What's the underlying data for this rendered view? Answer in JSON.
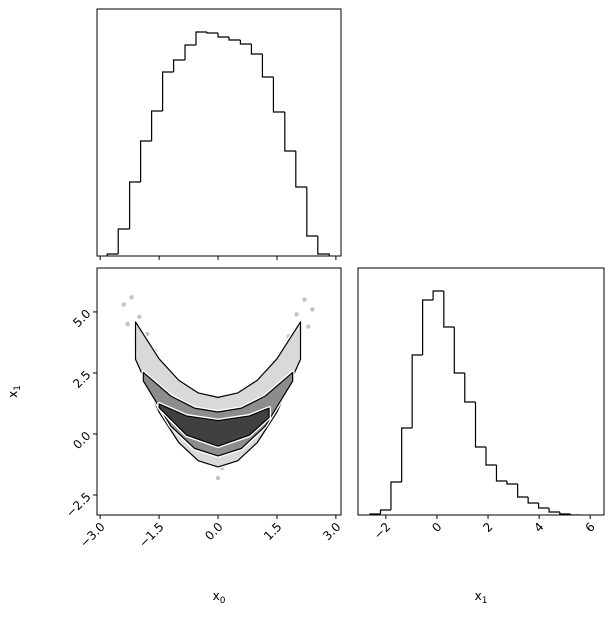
{
  "chart_data": [
    {
      "type": "histogram",
      "bins": [
        -2.82,
        -2.54,
        -2.25,
        -1.97,
        -1.69,
        -1.41,
        -1.13,
        -0.84,
        -0.56,
        -0.28,
        0.0,
        0.28,
        0.57,
        0.85,
        1.13,
        1.41,
        1.7,
        1.98,
        2.26,
        2.54,
        2.83
      ],
      "counts": [
        2,
        27,
        74,
        115,
        145,
        184,
        196,
        211,
        224,
        223,
        219,
        216,
        212,
        202,
        179,
        144,
        105,
        69,
        20,
        2
      ],
      "color": "#000000",
      "xlim": [
        -3.08,
        3.13
      ],
      "ylim": [
        0,
        247
      ],
      "xticks": [
        {
          "value": -3,
          "label": "−3.0"
        },
        {
          "value": -1.5,
          "label": "−1.5"
        },
        {
          "value": 0,
          "label": "0.0"
        },
        {
          "value": 1.5,
          "label": "1.5"
        },
        {
          "value": 3,
          "label": "3.0"
        }
      ]
    },
    {
      "type": "scatter",
      "xlabel": {
        "base": "x",
        "sub": "0"
      },
      "ylabel": {
        "base": "x",
        "sub": "1"
      },
      "x": [
        -2.4,
        -2.2,
        -2.1,
        -2.0,
        -1.9,
        -1.8,
        -1.7,
        -1.6,
        -1.5,
        -1.4,
        -1.3,
        -1.2,
        -1.1,
        -1.0,
        -0.9,
        -0.8,
        -0.7,
        -0.6,
        -0.5,
        -0.4,
        -0.3,
        -0.2,
        -0.1,
        0.0,
        0.1,
        0.2,
        0.3,
        0.4,
        0.5,
        0.6,
        0.7,
        0.8,
        0.9,
        1.0,
        1.1,
        1.2,
        1.3,
        1.4,
        1.5,
        1.6,
        1.7,
        1.8,
        1.9,
        2.0,
        2.1,
        2.2,
        2.4,
        -2.3,
        2.3,
        0.0,
        -0.6,
        0.7
      ],
      "y": [
        5.3,
        5.6,
        3.9,
        4.8,
        3.2,
        4.1,
        2.6,
        3.4,
        2.0,
        2.7,
        1.3,
        2.1,
        0.9,
        1.6,
        0.3,
        1.1,
        -0.2,
        0.8,
        -0.6,
        0.5,
        -0.9,
        1.2,
        -0.4,
        0.3,
        -1.4,
        0.9,
        -0.7,
        0.2,
        -0.3,
        1.0,
        0.1,
        1.4,
        0.4,
        1.9,
        0.6,
        2.2,
        1.2,
        2.9,
        1.6,
        3.3,
        2.4,
        4.0,
        3.1,
        4.9,
        3.7,
        5.5,
        5.1,
        4.5,
        4.4,
        -1.8,
        1.7,
        1.8
      ],
      "color": "#555555",
      "contours": [
        {
          "fill": "#d9d9d9",
          "x": [
            -2.1,
            -1.5,
            -1,
            -0.5,
            0,
            0.5,
            1,
            1.5,
            2.1,
            2.1,
            1.5,
            1,
            0.5,
            0,
            -0.5,
            -1,
            -1.5,
            -2.1
          ],
          "y": [
            4.59,
            3.08,
            2.2,
            1.68,
            1.5,
            1.68,
            2.2,
            3.08,
            4.59,
            3.06,
            0.9,
            -0.35,
            -1.1,
            -1.35,
            -1.1,
            -0.35,
            0.9,
            3.06
          ]
        },
        {
          "fill": "#8c8c8c",
          "x": [
            -1.9,
            -1.2,
            -0.6,
            0,
            0.6,
            1.2,
            1.9,
            1.9,
            1.2,
            0.6,
            0,
            -0.6,
            -1.2,
            -1.9
          ],
          "y": [
            2.52,
            1.55,
            1.06,
            0.9,
            1.06,
            1.55,
            2.52,
            2.17,
            0.32,
            -0.59,
            -0.9,
            -0.59,
            0.32,
            2.17
          ]
        },
        {
          "fill": "#404040",
          "x": [
            -1.5,
            -0.8,
            0,
            0.8,
            1.3,
            1.3,
            0.8,
            0,
            -0.8,
            -1.5
          ],
          "y": [
            1.23,
            0.74,
            0.55,
            0.74,
            1.06,
            0.68,
            -0.05,
            -0.5,
            -0.05,
            1.08
          ]
        }
      ],
      "xlim": [
        -3.08,
        3.13
      ],
      "ylim": [
        -3.32,
        6.8
      ],
      "xticks": [
        {
          "value": -3,
          "label": "−3.0"
        },
        {
          "value": -1.5,
          "label": "−1.5"
        },
        {
          "value": 0,
          "label": "0.0"
        },
        {
          "value": 1.5,
          "label": "1.5"
        },
        {
          "value": 3,
          "label": "3.0"
        }
      ],
      "yticks": [
        {
          "value": -2.5,
          "label": "−2.5"
        },
        {
          "value": 0,
          "label": "0.0"
        },
        {
          "value": 2.5,
          "label": "2.5"
        },
        {
          "value": 5,
          "label": "5.0"
        }
      ]
    },
    {
      "type": "histogram",
      "xlabel": {
        "base": "x",
        "sub": "1"
      },
      "bins": [
        -2.62,
        -2.21,
        -1.8,
        -1.38,
        -0.97,
        -0.56,
        -0.15,
        0.27,
        0.68,
        1.09,
        1.51,
        1.92,
        2.33,
        2.74,
        3.16,
        3.57,
        3.98,
        4.39,
        4.81,
        5.22,
        5.63
      ],
      "counts": [
        1,
        5,
        33,
        87,
        160,
        215,
        224,
        188,
        142,
        113,
        68,
        50,
        34,
        31,
        18,
        12,
        7,
        3,
        1,
        0
      ],
      "color": "#000000",
      "xlim": [
        -3.09,
        6.54
      ],
      "ylim": [
        0,
        247
      ],
      "xticks": [
        {
          "value": -2,
          "label": "−2"
        },
        0,
        2,
        4,
        6
      ]
    }
  ]
}
